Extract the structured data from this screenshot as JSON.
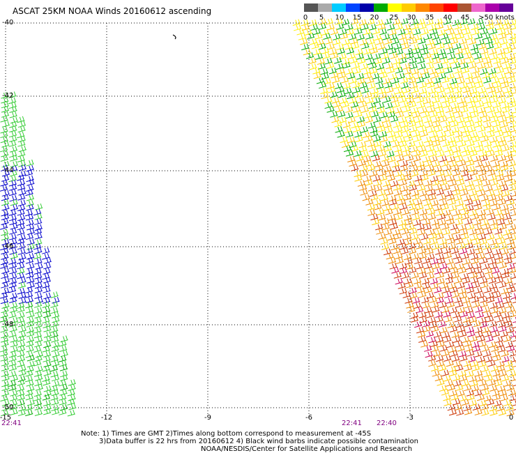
{
  "title": "ASCAT 25KM NOAA Winds 20160612 ascending",
  "legend": {
    "colors": [
      "#555555",
      "#aaaaaa",
      "#00ccff",
      "#0044ff",
      "#0000aa",
      "#00aa00",
      "#ffff00",
      "#ffcc00",
      "#ff8800",
      "#ff4400",
      "#ff0000",
      "#aa5533",
      "#ee66cc",
      "#aa00aa",
      "#660099"
    ],
    "labels": [
      "0",
      "5",
      "10",
      "15",
      "20",
      "25",
      "30",
      "35",
      "40",
      "45",
      ">50 knots"
    ]
  },
  "map": {
    "lat_labels": [
      "-40",
      "-42",
      "-44",
      "-46",
      "-48",
      "-50"
    ],
    "lon_labels": [
      "-15",
      "-12",
      "-9",
      "-6",
      "-3",
      "0"
    ],
    "time_labels": [
      "22:41",
      "22:41",
      "22:40"
    ]
  },
  "notes": {
    "line1": "Note: 1) Times are GMT 2)Times along bottom correspond to measurement at -45S",
    "line2": "3)Data buffer is 22 hrs from 20160612 4) Black wind barbs indicate possible contamination",
    "line3": "NOAA/NESDIS/Center for Satellite Applications and Research"
  },
  "wind_colors": {
    "calm": "#00aa00",
    "light": "#0000cc",
    "moderate": "#33cc33",
    "fresh": "#ffee00",
    "strong": "#ffcc00",
    "gale": "#ee8800",
    "storm": "#cc3300",
    "severe": "#cc0055"
  }
}
